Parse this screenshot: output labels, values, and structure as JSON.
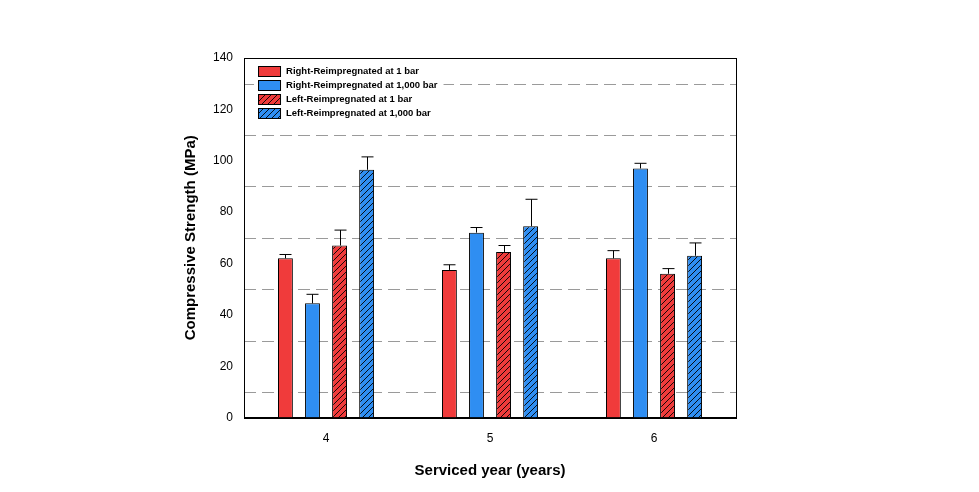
{
  "chart_data": {
    "type": "bar",
    "x_label": "Serviced year (years)",
    "y_label": "Compressive Strength (MPa)",
    "categories": [
      "4",
      "5",
      "6"
    ],
    "series": [
      {
        "name": "Right-Reimpregnated at 1 bar",
        "color": "#f03b3b",
        "line_style": "solid",
        "values": [
          62,
          57.5,
          62
        ],
        "errors": [
          1.5,
          2,
          3
        ]
      },
      {
        "name": "Right-Reimpregnated at 1,000 bar",
        "color": "#2f8ef2",
        "line_style": "solid",
        "values": [
          44.5,
          72,
          97
        ],
        "errors": [
          3.5,
          2,
          2
        ]
      },
      {
        "name": "Left-Reimpregnated at 1 bar",
        "color": "#f03b3b",
        "line_style": "hatched",
        "values": [
          67,
          64.5,
          56
        ],
        "errors": [
          6,
          2.5,
          2
        ]
      },
      {
        "name": "Left-Reimpregnated at 1,000 bar",
        "color": "#2f8ef2",
        "line_style": "hatched",
        "values": [
          96.5,
          74.5,
          63
        ],
        "errors": [
          5,
          10.5,
          5
        ]
      }
    ],
    "ylim": [
      0,
      140
    ],
    "yticks": [
      0,
      20,
      40,
      60,
      80,
      100,
      120,
      140
    ],
    "grid": true,
    "legend": "upper left"
  }
}
